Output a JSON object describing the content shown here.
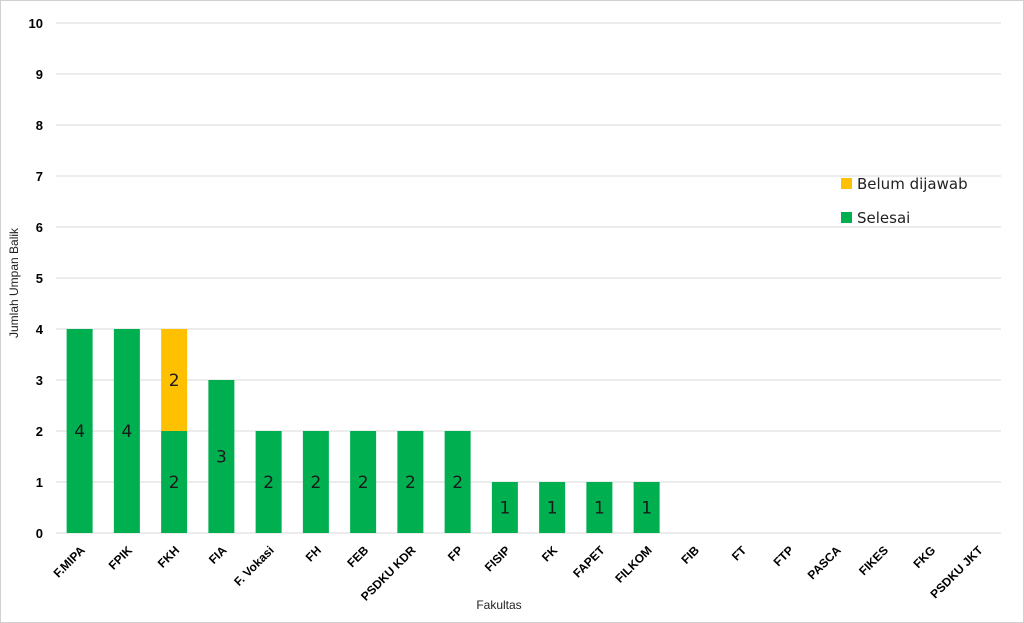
{
  "chart_data": {
    "type": "bar",
    "stacked": true,
    "categories": [
      "F.MIPA",
      "FPIK",
      "FKH",
      "FIA",
      "F. Vokasi",
      "FH",
      "FEB",
      "PSDKU KDR",
      "FP",
      "FISIP",
      "FK",
      "FAPET",
      "FILKOM",
      "FIB",
      "FT",
      "FTP",
      "PASCA",
      "FIKES",
      "FKG",
      "PSDKU JKT"
    ],
    "series": [
      {
        "name": "Selesai",
        "color": "#00b050",
        "values": [
          4,
          4,
          2,
          3,
          2,
          2,
          2,
          2,
          2,
          1,
          1,
          1,
          1,
          0,
          0,
          0,
          0,
          0,
          0,
          0
        ]
      },
      {
        "name": "Belum dijawab",
        "color": "#ffc000",
        "values": [
          0,
          0,
          2,
          0,
          0,
          0,
          0,
          0,
          0,
          0,
          0,
          0,
          0,
          0,
          0,
          0,
          0,
          0,
          0,
          0
        ]
      }
    ],
    "xlabel": "Fakultas",
    "ylabel": "Jumlah Umpan Balik",
    "ylim": [
      0,
      10
    ],
    "yticks": [
      0,
      1,
      2,
      3,
      4,
      5,
      6,
      7,
      8,
      9,
      10
    ],
    "grid": true,
    "legend_position": "right",
    "legend_order": [
      "Belum dijawab",
      "Selesai"
    ],
    "data_labels": true
  }
}
